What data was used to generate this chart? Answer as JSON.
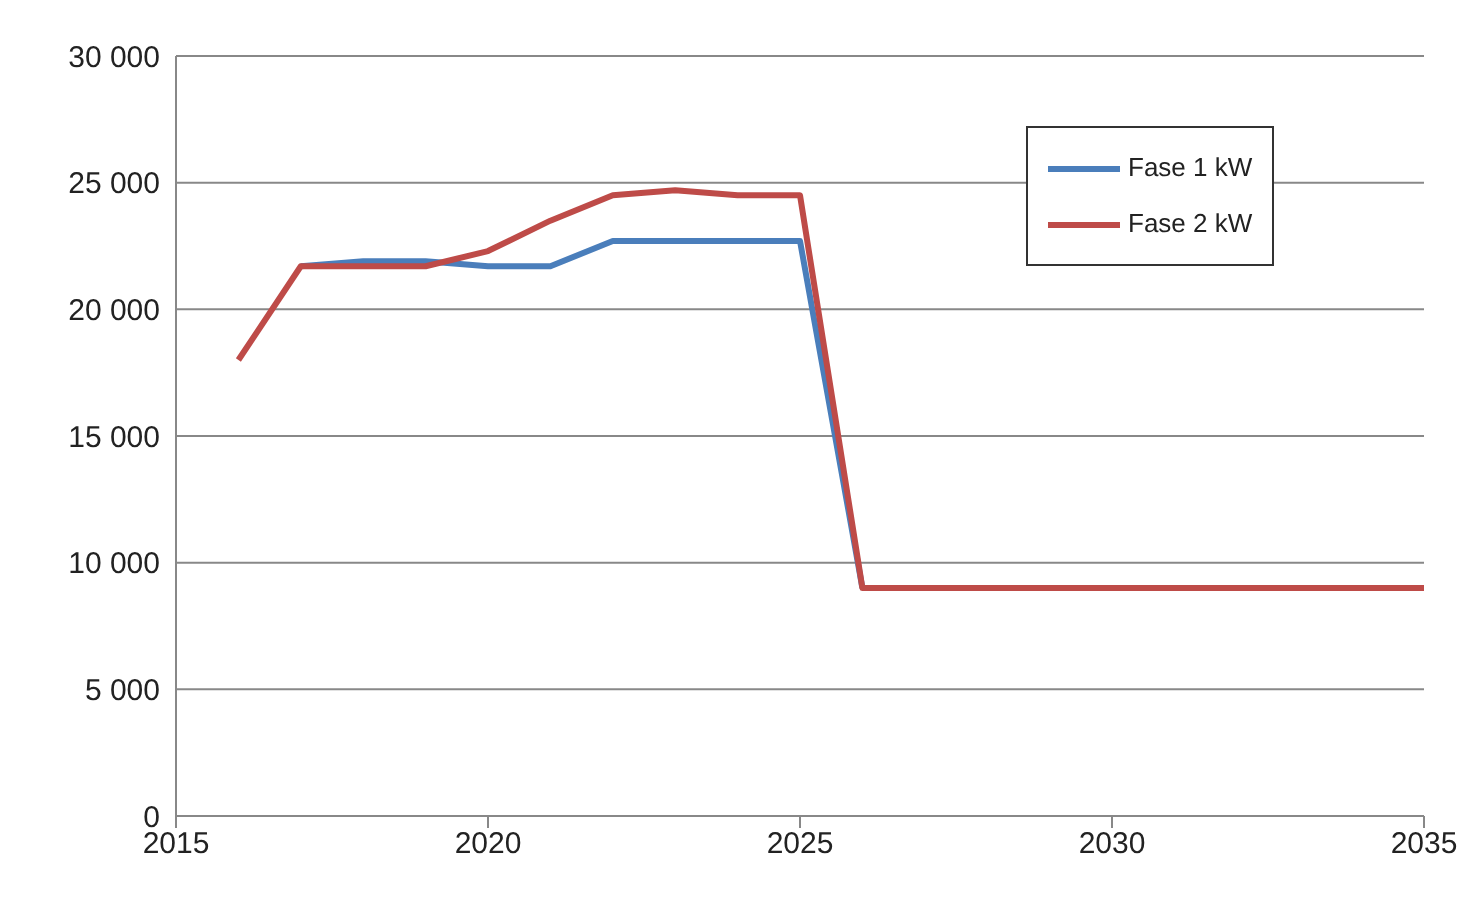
{
  "chart_data": {
    "type": "line",
    "x": [
      2016,
      2017,
      2018,
      2019,
      2020,
      2021,
      2022,
      2023,
      2024,
      2025,
      2026,
      2027,
      2028,
      2029,
      2030,
      2031,
      2032,
      2033,
      2034,
      2035
    ],
    "series": [
      {
        "name": "Fase 1 kW",
        "color": "#4a7ebb",
        "values": [
          null,
          21700,
          21900,
          21900,
          21700,
          21700,
          22700,
          22700,
          22700,
          22700,
          9000,
          null,
          null,
          null,
          null,
          null,
          null,
          null,
          null,
          null
        ]
      },
      {
        "name": "Fase 2 kW",
        "color": "#be4b48",
        "values": [
          18000,
          21700,
          21700,
          21700,
          22300,
          23500,
          24500,
          24700,
          24500,
          24500,
          9000,
          9000,
          9000,
          9000,
          9000,
          9000,
          9000,
          9000,
          9000,
          9000
        ]
      }
    ],
    "xlim": [
      2015,
      2035
    ],
    "xticks": [
      2015,
      2020,
      2025,
      2030,
      2035
    ],
    "ylim": [
      0,
      30000
    ],
    "yticks": [
      {
        "value": 0,
        "label": "0"
      },
      {
        "value": 5000,
        "label": "5 000"
      },
      {
        "value": 10000,
        "label": "10 000"
      },
      {
        "value": 15000,
        "label": "15 000"
      },
      {
        "value": 20000,
        "label": "20 000"
      },
      {
        "value": 25000,
        "label": "25 000"
      },
      {
        "value": 30000,
        "label": "30 000"
      }
    ],
    "grid": "y",
    "legend": "top right",
    "marker": "none",
    "line_style": "solid"
  }
}
